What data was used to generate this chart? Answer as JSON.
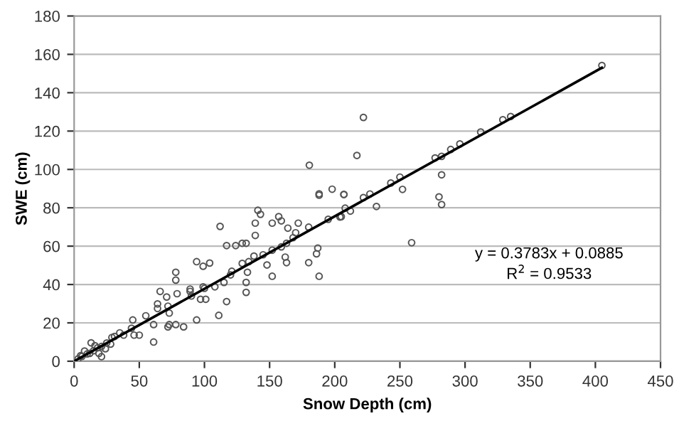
{
  "chart_data": {
    "type": "scatter",
    "xlabel": "Snow Depth (cm)",
    "ylabel": "SWE (cm)",
    "xlim": [
      0,
      450
    ],
    "ylim": [
      0,
      180
    ],
    "xticks": [
      0,
      50,
      100,
      150,
      200,
      250,
      300,
      350,
      400,
      450
    ],
    "yticks": [
      0,
      20,
      40,
      60,
      80,
      100,
      120,
      140,
      160,
      180
    ],
    "grid": "y",
    "legend": false,
    "annotations": [
      "y = 0.3783x + 0.0885",
      "R$^{2}$ = 0.9533"
    ],
    "series": [
      {
        "marker": "circle",
        "color": "#555555",
        "x": [
          180.5,
          198,
          188,
          188,
          207,
          205,
          112,
          141,
          143,
          157,
          159,
          152,
          139,
          172,
          164,
          180,
          168,
          139,
          132,
          129,
          124,
          117,
          145,
          163,
          159,
          187,
          186,
          152,
          138,
          134,
          129,
          180,
          163,
          162,
          148,
          152,
          188,
          133,
          121,
          104,
          94,
          99,
          78,
          78,
          132,
          132,
          115,
          108,
          99,
          89,
          89,
          79,
          66,
          71,
          97,
          101,
          117,
          64,
          72,
          64,
          73,
          111,
          94,
          45,
          61,
          72,
          73,
          78,
          84,
          61,
          46,
          50,
          35,
          38,
          31,
          28,
          13,
          16,
          19,
          21,
          8,
          12,
          5,
          24,
          44,
          55,
          29,
          21,
          405,
          335,
          329,
          312,
          296,
          289,
          277,
          282,
          222,
          217,
          282,
          250,
          243,
          252,
          227,
          222,
          207,
          280,
          282,
          232,
          212,
          208,
          204,
          259,
          100,
          120,
          90,
          170,
          195,
          3,
          6,
          10,
          15,
          18,
          25
        ],
        "values": [
          102.2,
          89.7,
          87.3,
          86.6,
          87,
          75.4,
          70.3,
          78.7,
          76.6,
          75.4,
          73.2,
          72,
          72,
          72,
          69.4,
          69.9,
          64.4,
          65.6,
          61.5,
          61.5,
          60.3,
          60.3,
          55.5,
          61.5,
          59.6,
          59,
          56,
          57.9,
          54.8,
          51.9,
          51,
          51.4,
          51.4,
          54.3,
          50.2,
          44.3,
          44.3,
          46.4,
          46.9,
          51.2,
          51.9,
          49.5,
          46.4,
          42.3,
          41.1,
          35.9,
          41.1,
          38.8,
          38.8,
          37.6,
          36.4,
          35.2,
          36.4,
          33.5,
          32.3,
          32.3,
          31.1,
          29.9,
          28.7,
          27.5,
          25.1,
          23.9,
          21.5,
          21.5,
          19.1,
          17.9,
          19.1,
          19.1,
          17.9,
          10,
          13.6,
          13.6,
          14.8,
          13.6,
          12.9,
          8.9,
          9.6,
          8.1,
          4.1,
          2.4,
          5.3,
          4.1,
          2.9,
          6.5,
          17.2,
          23.7,
          12.4,
          7.7,
          154.2,
          127.6,
          125.9,
          119.5,
          113.3,
          110.4,
          106,
          106.8,
          127.1,
          107.3,
          97.2,
          96,
          92.9,
          89.6,
          87.2,
          85.3,
          86.9,
          85.7,
          81.7,
          80.7,
          78.3,
          79.8,
          75.2,
          61.8,
          38,
          45,
          34,
          67,
          74,
          1.2,
          2.5,
          3.8,
          5.5,
          7,
          9.5
        ]
      },
      {
        "type": "line",
        "marker": "none",
        "color": "#000000",
        "x": [
          0,
          405
        ],
        "values": [
          0,
          153
        ]
      }
    ]
  }
}
